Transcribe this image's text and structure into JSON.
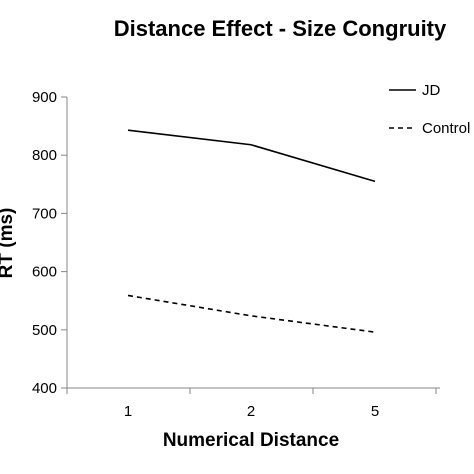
{
  "chart_data": {
    "type": "line",
    "title": "Distance Effect - Size Congruity",
    "xlabel": "Numerical Distance",
    "ylabel": "RT (ms)",
    "categories": [
      "1",
      "2",
      "5"
    ],
    "ylim": [
      400,
      900
    ],
    "yticks": [
      400,
      500,
      600,
      700,
      800,
      900
    ],
    "grid": false,
    "legend": "right",
    "series": [
      {
        "name": "JD",
        "values": [
          843,
          818,
          755
        ],
        "color": "#000000",
        "dash": "solid"
      },
      {
        "name": "Control",
        "values": [
          559,
          524,
          496
        ],
        "color": "#000000",
        "dash": "dashed"
      }
    ]
  }
}
